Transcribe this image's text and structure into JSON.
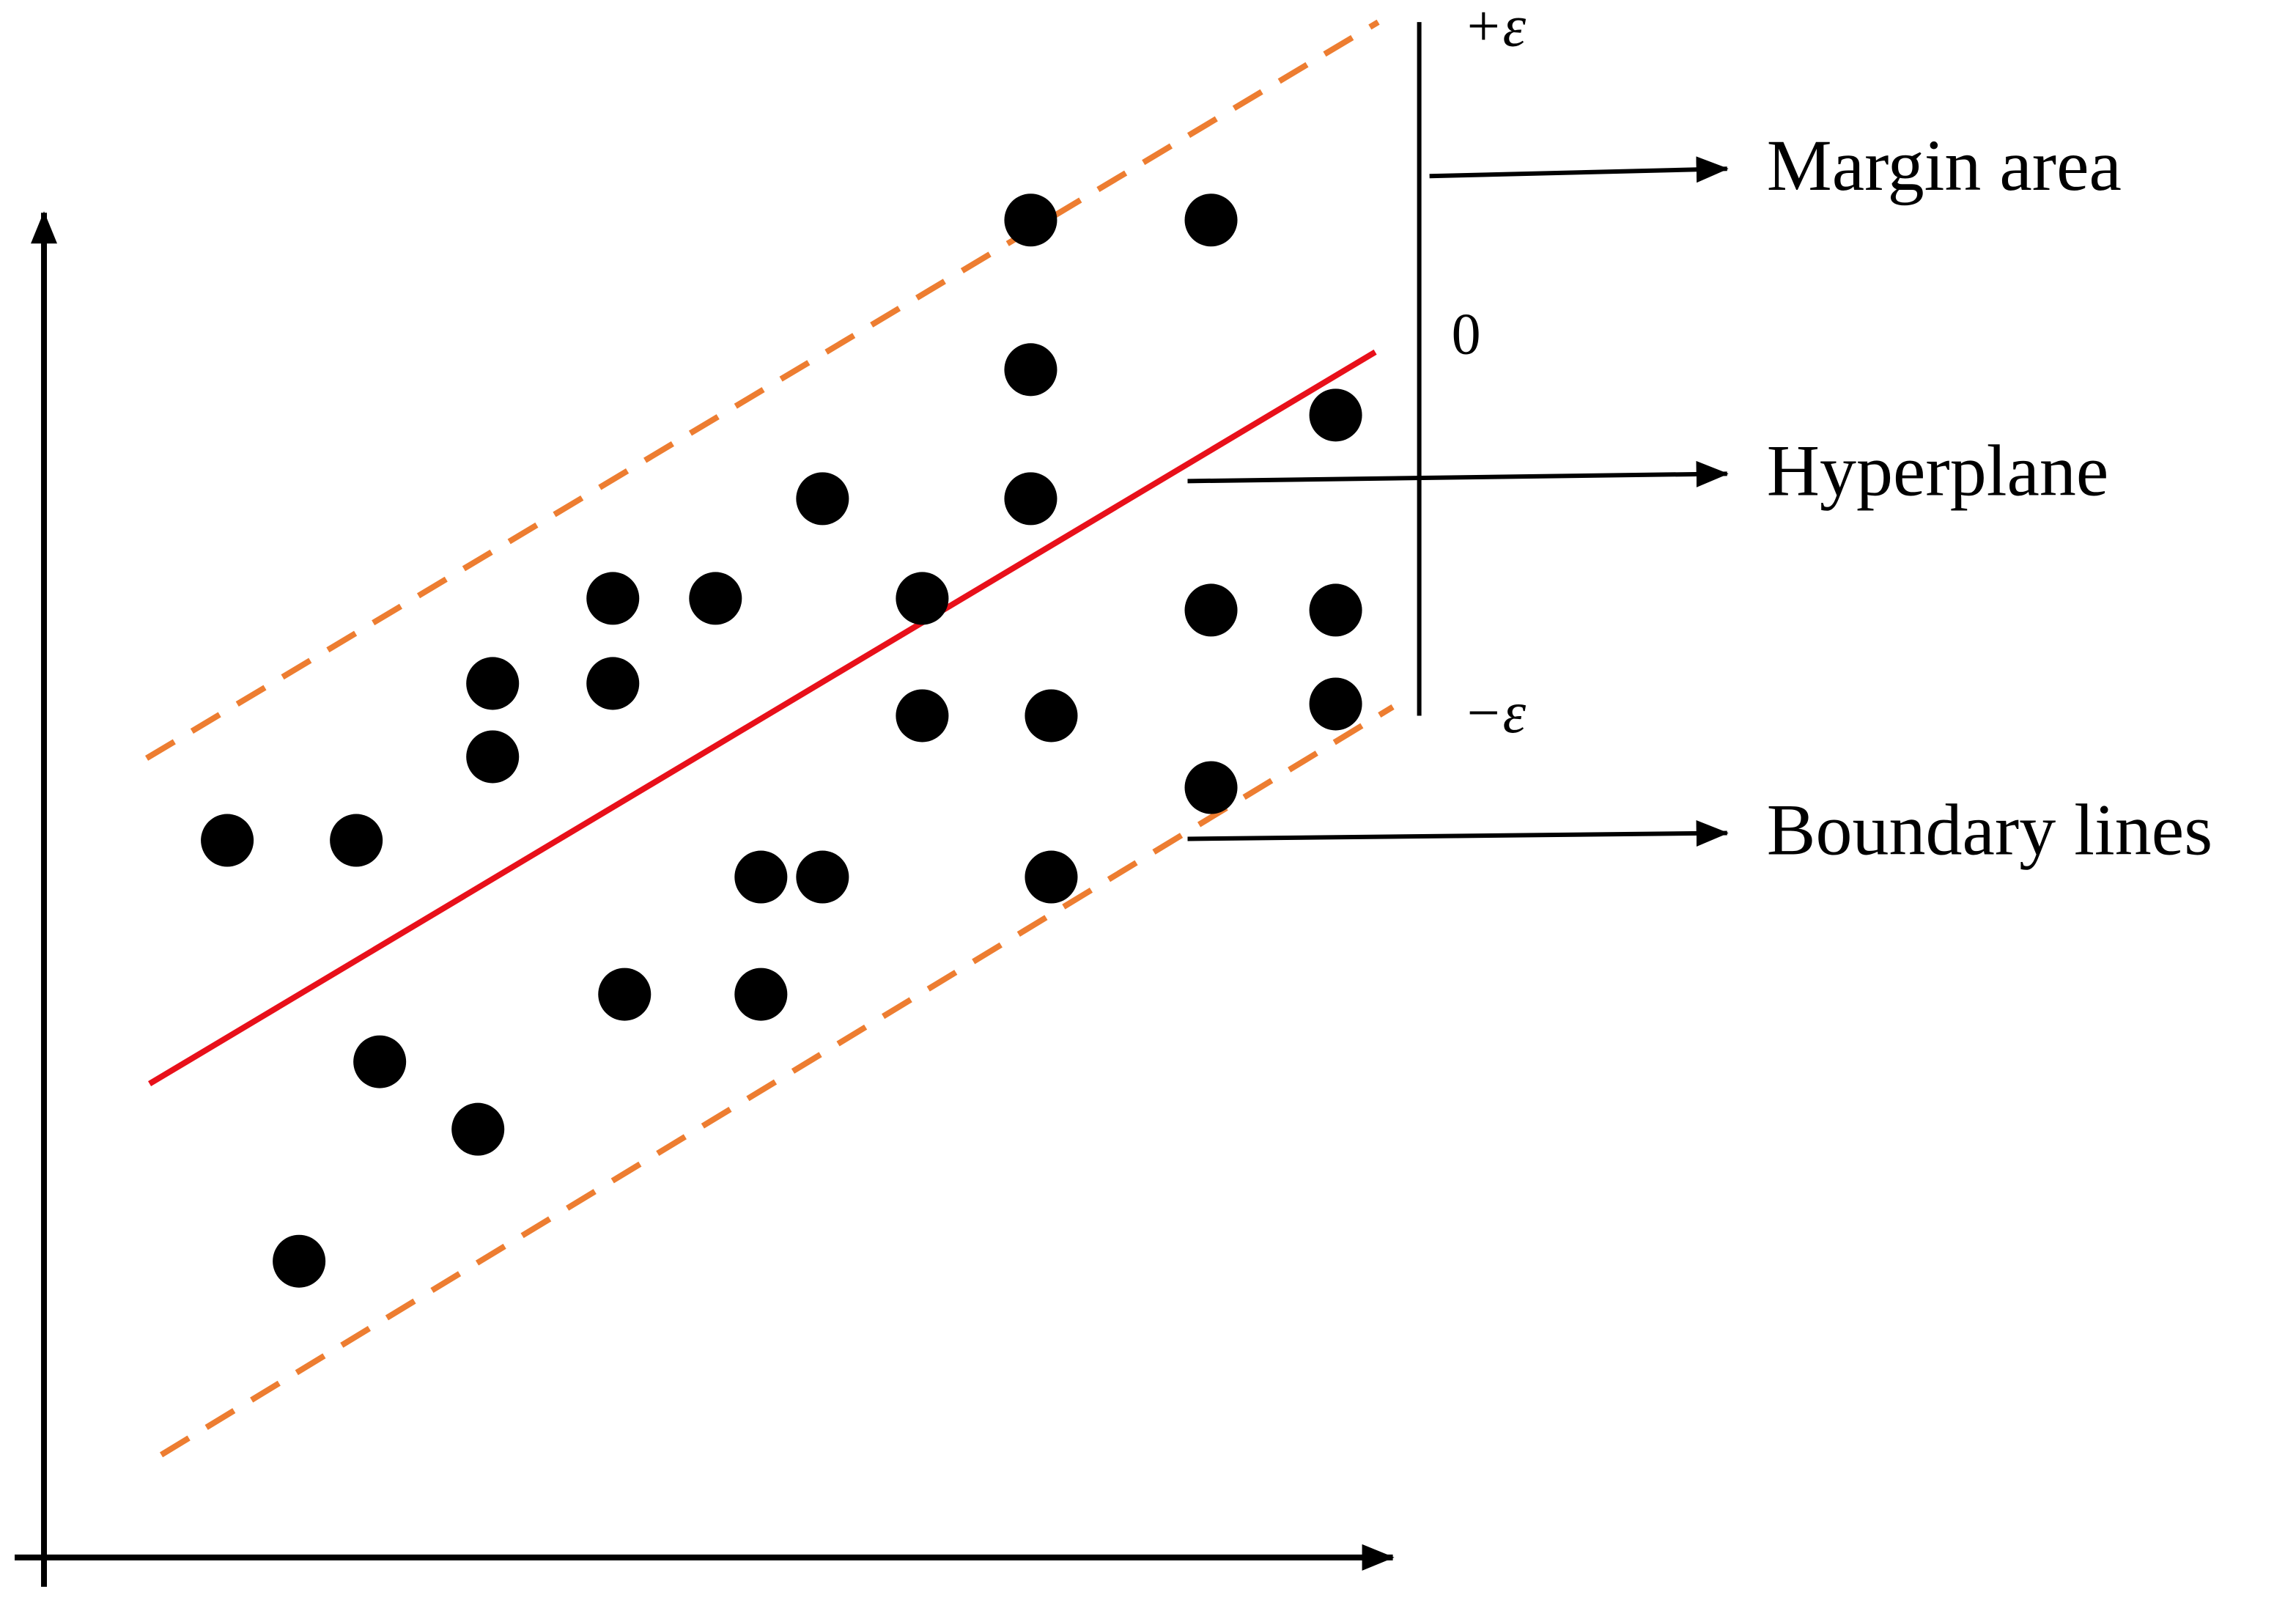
{
  "margin_labels": {
    "plus_epsilon": "+ε",
    "zero": "0",
    "minus_epsilon": "−ε"
  },
  "annotations": [
    "Margin area",
    "Hyperplane",
    "Boundary lines"
  ]
}
